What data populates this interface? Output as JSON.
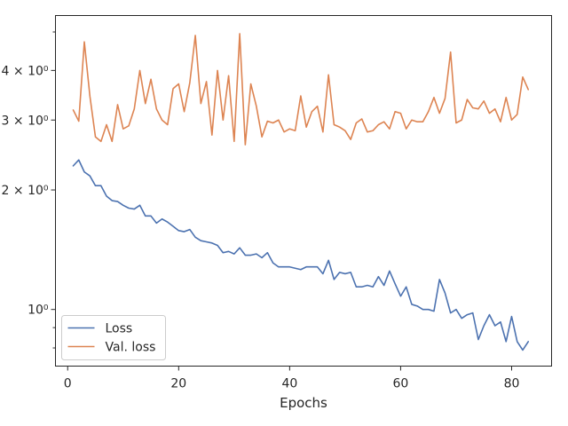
{
  "chart_data": {
    "type": "line",
    "title": "",
    "xlabel": "Epochs",
    "ylabel": "",
    "yscale": "log",
    "xlim": [
      -2.2,
      87.2
    ],
    "ylim": [
      0.72,
      5.5
    ],
    "grid": false,
    "legend_position": "lower-left",
    "x_ticks": [
      0,
      20,
      40,
      60,
      80
    ],
    "x_tick_labels": [
      "0",
      "20",
      "40",
      "60",
      "80"
    ],
    "y_major_ticks": [
      {
        "value": 1,
        "label": "10⁰"
      },
      {
        "value": 2,
        "label": "2 × 10⁰"
      },
      {
        "value": 3,
        "label": "3 × 10⁰"
      },
      {
        "value": 4,
        "label": "4 × 10⁰"
      }
    ],
    "y_minor_ticks": [
      0.8,
      0.9,
      5
    ],
    "series": [
      {
        "name": "Loss",
        "color": "#4c72b0",
        "x": [
          1,
          2,
          3,
          4,
          5,
          6,
          7,
          8,
          9,
          10,
          11,
          12,
          13,
          14,
          15,
          16,
          17,
          18,
          19,
          20,
          21,
          22,
          23,
          24,
          25,
          26,
          27,
          28,
          29,
          30,
          31,
          32,
          33,
          34,
          35,
          36,
          37,
          38,
          39,
          40,
          41,
          42,
          43,
          44,
          45,
          46,
          47,
          48,
          49,
          50,
          51,
          52,
          53,
          54,
          55,
          56,
          57,
          58,
          59,
          60,
          61,
          62,
          63,
          64,
          65,
          66,
          67,
          68,
          69,
          70,
          71,
          72,
          73,
          74,
          75,
          76,
          77,
          78,
          79,
          80,
          81,
          82,
          83
        ],
        "values": [
          2.3,
          2.38,
          2.22,
          2.17,
          2.05,
          2.05,
          1.93,
          1.88,
          1.87,
          1.83,
          1.8,
          1.79,
          1.83,
          1.72,
          1.72,
          1.65,
          1.69,
          1.66,
          1.62,
          1.58,
          1.57,
          1.59,
          1.52,
          1.49,
          1.48,
          1.47,
          1.45,
          1.39,
          1.4,
          1.38,
          1.43,
          1.37,
          1.37,
          1.38,
          1.35,
          1.39,
          1.31,
          1.28,
          1.28,
          1.28,
          1.27,
          1.26,
          1.28,
          1.28,
          1.28,
          1.23,
          1.33,
          1.19,
          1.24,
          1.23,
          1.24,
          1.14,
          1.14,
          1.15,
          1.14,
          1.21,
          1.15,
          1.25,
          1.16,
          1.08,
          1.14,
          1.03,
          1.02,
          1.0,
          1.0,
          0.99,
          1.19,
          1.1,
          0.98,
          1.0,
          0.95,
          0.97,
          0.98,
          0.84,
          0.91,
          0.97,
          0.91,
          0.93,
          0.83,
          0.96,
          0.83,
          0.79,
          0.83
        ]
      },
      {
        "name": "Val. loss",
        "color": "#dd8452",
        "x": [
          1,
          2,
          3,
          4,
          5,
          6,
          7,
          8,
          9,
          10,
          11,
          12,
          13,
          14,
          15,
          16,
          17,
          18,
          19,
          20,
          21,
          22,
          23,
          24,
          25,
          26,
          27,
          28,
          29,
          30,
          31,
          32,
          33,
          34,
          35,
          36,
          37,
          38,
          39,
          40,
          41,
          42,
          43,
          44,
          45,
          46,
          47,
          48,
          49,
          50,
          51,
          52,
          53,
          54,
          55,
          56,
          57,
          58,
          59,
          60,
          61,
          62,
          63,
          64,
          65,
          66,
          67,
          68,
          69,
          70,
          71,
          72,
          73,
          74,
          75,
          76,
          77,
          78,
          79,
          80,
          81,
          82,
          83
        ],
        "values": [
          3.18,
          2.98,
          4.72,
          3.45,
          2.72,
          2.65,
          2.92,
          2.65,
          3.28,
          2.85,
          2.9,
          3.2,
          4.0,
          3.3,
          3.8,
          3.2,
          3.0,
          2.92,
          3.6,
          3.7,
          3.15,
          3.72,
          4.9,
          3.3,
          3.75,
          2.75,
          4.0,
          3.0,
          3.88,
          2.65,
          4.95,
          2.6,
          3.7,
          3.25,
          2.72,
          2.98,
          2.95,
          3.0,
          2.8,
          2.85,
          2.82,
          3.45,
          2.88,
          3.15,
          3.25,
          2.8,
          3.9,
          2.92,
          2.88,
          2.82,
          2.68,
          2.95,
          3.02,
          2.8,
          2.82,
          2.92,
          2.97,
          2.85,
          3.15,
          3.12,
          2.85,
          3.0,
          2.97,
          2.97,
          3.15,
          3.42,
          3.12,
          3.4,
          4.45,
          2.95,
          3.0,
          3.38,
          3.22,
          3.2,
          3.35,
          3.12,
          3.2,
          2.97,
          3.42,
          3.0,
          3.1,
          3.85,
          3.58
        ]
      }
    ]
  }
}
